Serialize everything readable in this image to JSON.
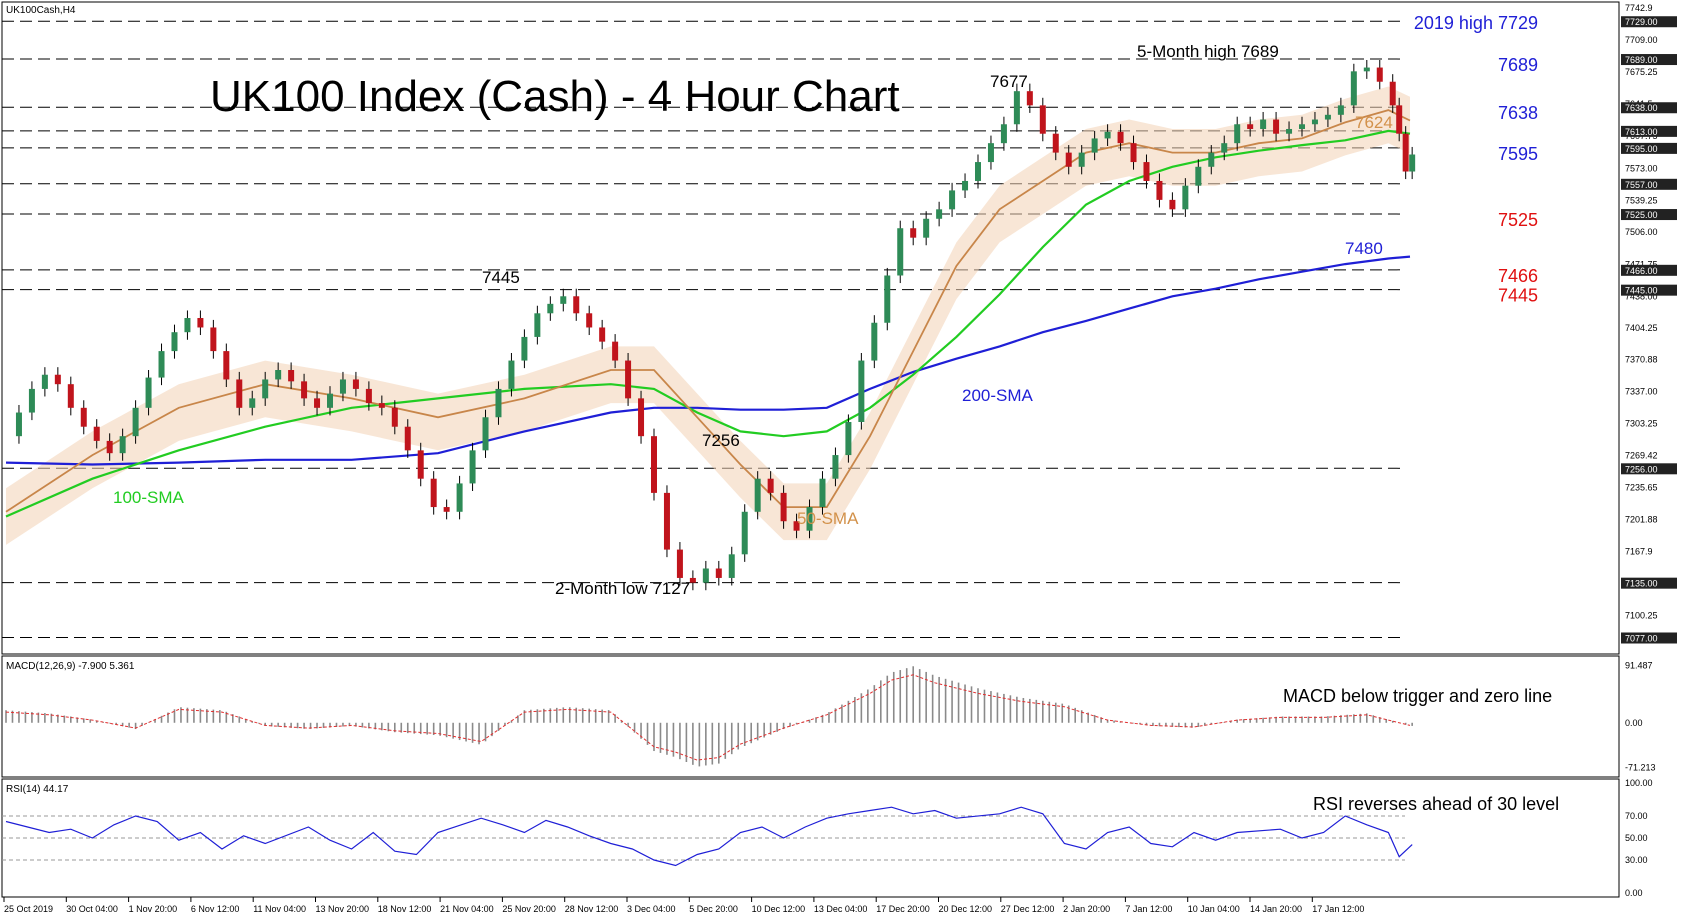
{
  "header": {
    "symbol": "UK100Cash,H4"
  },
  "chart_data": {
    "type": "candlestick",
    "title": "UK100 Index (Cash) - 4 Hour Chart",
    "ylim": [
      7068,
      7743
    ],
    "price_ticks": [
      7742.9,
      7709.0,
      7675.25,
      7641.5,
      7607.75,
      7573.0,
      7539.25,
      7506.0,
      7471.75,
      7438.0,
      7404.25,
      7370.88,
      7337.0,
      7303.25,
      7269.42,
      7235.65,
      7201.88,
      7167.9,
      7134.0,
      7100.25
    ],
    "price_tags": [
      {
        "value": 7729.0
      },
      {
        "value": 7689.0
      },
      {
        "value": 7638.0
      },
      {
        "value": 7613.0
      },
      {
        "value": 7595.0
      },
      {
        "value": 7557.0
      },
      {
        "value": 7525.0
      },
      {
        "value": 7466.0
      },
      {
        "value": 7445.0
      },
      {
        "value": 7256.0
      },
      {
        "value": 7135.0
      },
      {
        "value": 7077.0
      }
    ],
    "horizontal_levels": [
      7729,
      7689,
      7638,
      7613,
      7595,
      7557,
      7525,
      7466,
      7445,
      7256,
      7135,
      7077
    ],
    "level_labels": [
      {
        "text": "2019 high 7729",
        "value": 7729,
        "color": "#1f1fd6"
      },
      {
        "text": "7689",
        "value": 7689,
        "color": "#1f1fd6"
      },
      {
        "text": "7638",
        "value": 7638,
        "color": "#1f1fd6"
      },
      {
        "text": "7595",
        "value": 7595,
        "color": "#1f1fd6"
      },
      {
        "text": "7525",
        "value": 7525,
        "color": "#e01010"
      },
      {
        "text": "7466",
        "value": 7466,
        "color": "#e01010"
      },
      {
        "text": "7445",
        "value": 7445,
        "color": "#e01010"
      }
    ],
    "annotations": [
      {
        "text": "5-Month high 7689",
        "color": "#000000"
      },
      {
        "text": "7677",
        "color": "#000000"
      },
      {
        "text": "7445",
        "color": "#000000"
      },
      {
        "text": "7256",
        "color": "#000000"
      },
      {
        "text": "2-Month low 7127",
        "color": "#000000"
      },
      {
        "text": "7624",
        "color": "#d2914a"
      },
      {
        "text": "7480",
        "color": "#1f1fd6"
      },
      {
        "text": "200-SMA",
        "color": "#1f1fd6"
      },
      {
        "text": "100-SMA",
        "color": "#22cc22"
      },
      {
        "text": "50-SMA",
        "color": "#d2914a"
      }
    ],
    "x_tick_labels": [
      "25 Oct 2019",
      "30 Oct 04:00",
      "1 Nov 20:00",
      "6 Nov 12:00",
      "11 Nov 04:00",
      "13 Nov 20:00",
      "18 Nov 12:00",
      "21 Nov 04:00",
      "25 Nov 20:00",
      "28 Nov 12:00",
      "3 Dec 04:00",
      "5 Dec 20:00",
      "10 Dec 12:00",
      "13 Dec 04:00",
      "17 Dec 20:00",
      "20 Dec 12:00",
      "27 Dec 12:00",
      "2 Jan 20:00",
      "7 Jan 12:00",
      "10 Jan 04:00",
      "14 Jan 20:00",
      "17 Jan 12:00"
    ],
    "price_path": [
      [
        0,
        7290
      ],
      [
        6,
        7315
      ],
      [
        12,
        7340
      ],
      [
        18,
        7355
      ],
      [
        24,
        7345
      ],
      [
        30,
        7320
      ],
      [
        36,
        7300
      ],
      [
        42,
        7285
      ],
      [
        48,
        7272
      ],
      [
        54,
        7290
      ],
      [
        60,
        7320
      ],
      [
        66,
        7352
      ],
      [
        72,
        7380
      ],
      [
        78,
        7400
      ],
      [
        84,
        7415
      ],
      [
        90,
        7405
      ],
      [
        96,
        7380
      ],
      [
        102,
        7350
      ],
      [
        108,
        7320
      ],
      [
        114,
        7330
      ],
      [
        120,
        7350
      ],
      [
        126,
        7360
      ],
      [
        132,
        7348
      ],
      [
        138,
        7330
      ],
      [
        144,
        7320
      ],
      [
        150,
        7335
      ],
      [
        156,
        7350
      ],
      [
        162,
        7340
      ],
      [
        168,
        7325
      ],
      [
        174,
        7320
      ],
      [
        180,
        7300
      ],
      [
        186,
        7275
      ],
      [
        192,
        7245
      ],
      [
        198,
        7215
      ],
      [
        204,
        7210
      ],
      [
        210,
        7240
      ],
      [
        216,
        7275
      ],
      [
        222,
        7310
      ],
      [
        228,
        7340
      ],
      [
        234,
        7370
      ],
      [
        240,
        7395
      ],
      [
        246,
        7420
      ],
      [
        252,
        7430
      ],
      [
        258,
        7438
      ],
      [
        264,
        7420
      ],
      [
        270,
        7405
      ],
      [
        276,
        7390
      ],
      [
        282,
        7370
      ],
      [
        288,
        7330
      ],
      [
        294,
        7290
      ],
      [
        300,
        7230
      ],
      [
        306,
        7170
      ],
      [
        312,
        7140
      ],
      [
        318,
        7135
      ],
      [
        324,
        7150
      ],
      [
        330,
        7140
      ],
      [
        336,
        7165
      ],
      [
        342,
        7210
      ],
      [
        348,
        7245
      ],
      [
        354,
        7230
      ],
      [
        360,
        7200
      ],
      [
        366,
        7190
      ],
      [
        372,
        7215
      ],
      [
        378,
        7245
      ],
      [
        384,
        7270
      ],
      [
        390,
        7305
      ],
      [
        396,
        7370
      ],
      [
        402,
        7410
      ],
      [
        408,
        7460
      ],
      [
        414,
        7510
      ],
      [
        420,
        7500
      ],
      [
        426,
        7520
      ],
      [
        432,
        7530
      ],
      [
        438,
        7550
      ],
      [
        444,
        7560
      ],
      [
        450,
        7580
      ],
      [
        456,
        7600
      ],
      [
        462,
        7620
      ],
      [
        468,
        7655
      ],
      [
        474,
        7640
      ],
      [
        480,
        7610
      ],
      [
        486,
        7590
      ],
      [
        492,
        7575
      ],
      [
        498,
        7590
      ],
      [
        504,
        7605
      ],
      [
        510,
        7612
      ],
      [
        516,
        7600
      ],
      [
        522,
        7580
      ],
      [
        528,
        7560
      ],
      [
        534,
        7540
      ],
      [
        540,
        7530
      ],
      [
        546,
        7555
      ],
      [
        552,
        7575
      ],
      [
        558,
        7590
      ],
      [
        564,
        7600
      ],
      [
        570,
        7620
      ],
      [
        576,
        7615
      ],
      [
        582,
        7625
      ],
      [
        588,
        7610
      ],
      [
        594,
        7615
      ],
      [
        600,
        7620
      ],
      [
        606,
        7625
      ],
      [
        612,
        7630
      ],
      [
        618,
        7640
      ],
      [
        624,
        7676
      ],
      [
        630,
        7680
      ],
      [
        636,
        7665
      ],
      [
        642,
        7640
      ],
      [
        645,
        7610
      ],
      [
        648,
        7570
      ],
      [
        651,
        7588
      ]
    ],
    "sma_50_path": [
      [
        0,
        7210
      ],
      [
        40,
        7270
      ],
      [
        80,
        7320
      ],
      [
        120,
        7345
      ],
      [
        160,
        7330
      ],
      [
        200,
        7310
      ],
      [
        240,
        7330
      ],
      [
        280,
        7360
      ],
      [
        300,
        7360
      ],
      [
        320,
        7310
      ],
      [
        340,
        7260
      ],
      [
        360,
        7215
      ],
      [
        380,
        7215
      ],
      [
        400,
        7290
      ],
      [
        420,
        7380
      ],
      [
        440,
        7470
      ],
      [
        460,
        7530
      ],
      [
        480,
        7560
      ],
      [
        500,
        7590
      ],
      [
        520,
        7600
      ],
      [
        540,
        7590
      ],
      [
        560,
        7590
      ],
      [
        580,
        7600
      ],
      [
        600,
        7605
      ],
      [
        620,
        7622
      ],
      [
        640,
        7635
      ],
      [
        650,
        7624
      ]
    ],
    "sma_100_path": [
      [
        0,
        7205
      ],
      [
        40,
        7245
      ],
      [
        80,
        7275
      ],
      [
        120,
        7300
      ],
      [
        160,
        7320
      ],
      [
        200,
        7330
      ],
      [
        240,
        7340
      ],
      [
        280,
        7345
      ],
      [
        300,
        7340
      ],
      [
        320,
        7315
      ],
      [
        340,
        7295
      ],
      [
        360,
        7290
      ],
      [
        380,
        7295
      ],
      [
        400,
        7320
      ],
      [
        420,
        7355
      ],
      [
        440,
        7395
      ],
      [
        460,
        7440
      ],
      [
        480,
        7490
      ],
      [
        500,
        7535
      ],
      [
        520,
        7560
      ],
      [
        540,
        7575
      ],
      [
        560,
        7585
      ],
      [
        580,
        7592
      ],
      [
        600,
        7598
      ],
      [
        620,
        7603
      ],
      [
        640,
        7613
      ],
      [
        650,
        7610
      ]
    ],
    "sma_200_path": [
      [
        0,
        7262
      ],
      [
        40,
        7260
      ],
      [
        80,
        7262
      ],
      [
        120,
        7265
      ],
      [
        160,
        7265
      ],
      [
        200,
        7272
      ],
      [
        240,
        7295
      ],
      [
        280,
        7315
      ],
      [
        300,
        7320
      ],
      [
        320,
        7320
      ],
      [
        340,
        7318
      ],
      [
        360,
        7318
      ],
      [
        380,
        7320
      ],
      [
        400,
        7340
      ],
      [
        420,
        7358
      ],
      [
        440,
        7372
      ],
      [
        460,
        7385
      ],
      [
        480,
        7400
      ],
      [
        500,
        7412
      ],
      [
        520,
        7425
      ],
      [
        540,
        7438
      ],
      [
        560,
        7446
      ],
      [
        580,
        7456
      ],
      [
        600,
        7464
      ],
      [
        620,
        7472
      ],
      [
        640,
        7478
      ],
      [
        650,
        7480
      ]
    ],
    "macd_label": "MACD(12,26,9) -7.900 5.361",
    "macd_ticks": [
      91.487,
      0.0,
      -71.213
    ],
    "macd_ylim": [
      -80,
      100
    ],
    "macd_annotation": "MACD below trigger and zero line",
    "macd_hist": [
      [
        0,
        20
      ],
      [
        20,
        15
      ],
      [
        40,
        5
      ],
      [
        60,
        -10
      ],
      [
        80,
        25
      ],
      [
        100,
        20
      ],
      [
        120,
        -5
      ],
      [
        140,
        -10
      ],
      [
        160,
        -5
      ],
      [
        180,
        -15
      ],
      [
        200,
        -20
      ],
      [
        220,
        -35
      ],
      [
        240,
        20
      ],
      [
        260,
        25
      ],
      [
        280,
        20
      ],
      [
        300,
        -45
      ],
      [
        310,
        -55
      ],
      [
        320,
        -70
      ],
      [
        330,
        -65
      ],
      [
        340,
        -40
      ],
      [
        360,
        -10
      ],
      [
        380,
        15
      ],
      [
        400,
        55
      ],
      [
        410,
        80
      ],
      [
        420,
        90
      ],
      [
        430,
        75
      ],
      [
        450,
        55
      ],
      [
        470,
        40
      ],
      [
        490,
        30
      ],
      [
        510,
        5
      ],
      [
        530,
        -5
      ],
      [
        550,
        -8
      ],
      [
        570,
        5
      ],
      [
        590,
        10
      ],
      [
        610,
        10
      ],
      [
        630,
        15
      ],
      [
        650,
        -5
      ]
    ],
    "rsi_label": "RSI(14) 44.17",
    "rsi_ticks": [
      100.0,
      70.0,
      50.0,
      30.0,
      0.0
    ],
    "rsi_levels": [
      70,
      50,
      30
    ],
    "rsi_annotation": "RSI reverses ahead of 30 level",
    "rsi_path": [
      [
        0,
        65
      ],
      [
        10,
        60
      ],
      [
        20,
        55
      ],
      [
        30,
        58
      ],
      [
        40,
        50
      ],
      [
        50,
        62
      ],
      [
        60,
        70
      ],
      [
        70,
        65
      ],
      [
        80,
        48
      ],
      [
        90,
        55
      ],
      [
        100,
        40
      ],
      [
        110,
        52
      ],
      [
        120,
        45
      ],
      [
        140,
        60
      ],
      [
        150,
        48
      ],
      [
        160,
        40
      ],
      [
        170,
        55
      ],
      [
        180,
        38
      ],
      [
        190,
        35
      ],
      [
        200,
        55
      ],
      [
        220,
        68
      ],
      [
        230,
        62
      ],
      [
        240,
        55
      ],
      [
        250,
        66
      ],
      [
        260,
        60
      ],
      [
        270,
        52
      ],
      [
        280,
        45
      ],
      [
        290,
        40
      ],
      [
        300,
        30
      ],
      [
        310,
        25
      ],
      [
        320,
        35
      ],
      [
        330,
        40
      ],
      [
        340,
        55
      ],
      [
        350,
        60
      ],
      [
        360,
        50
      ],
      [
        370,
        60
      ],
      [
        380,
        68
      ],
      [
        390,
        72
      ],
      [
        400,
        75
      ],
      [
        410,
        78
      ],
      [
        420,
        72
      ],
      [
        430,
        75
      ],
      [
        440,
        68
      ],
      [
        460,
        72
      ],
      [
        470,
        78
      ],
      [
        480,
        72
      ],
      [
        490,
        45
      ],
      [
        500,
        40
      ],
      [
        510,
        55
      ],
      [
        520,
        60
      ],
      [
        530,
        45
      ],
      [
        540,
        42
      ],
      [
        550,
        55
      ],
      [
        560,
        48
      ],
      [
        570,
        55
      ],
      [
        590,
        58
      ],
      [
        600,
        50
      ],
      [
        610,
        55
      ],
      [
        620,
        70
      ],
      [
        630,
        62
      ],
      [
        640,
        55
      ],
      [
        645,
        33
      ],
      [
        651,
        44
      ]
    ]
  }
}
